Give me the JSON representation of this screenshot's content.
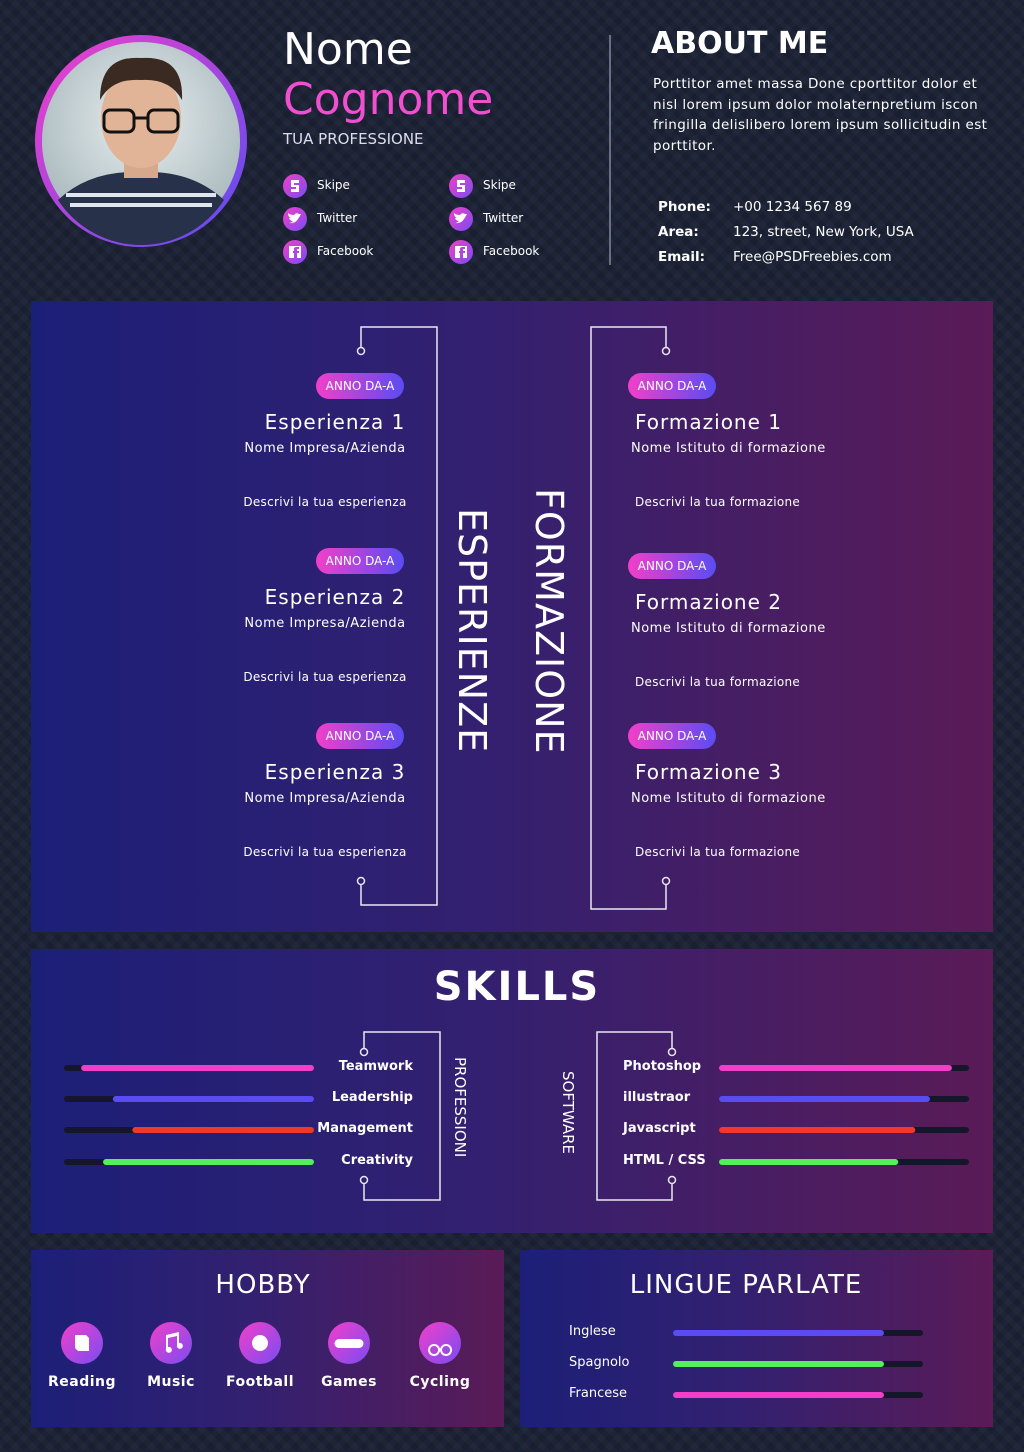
{
  "header": {
    "first_name": "Nome",
    "last_name": "Cognome",
    "profession": "TUA PROFESSIONE",
    "social_left": [
      "Skipe",
      "Twitter",
      "Facebook"
    ],
    "social_right": [
      "Skipe",
      "Twitter",
      "Facebook"
    ]
  },
  "about": {
    "title": "ABOUT ME",
    "text": "Porttitor amet massa Done cporttitor dolor et nisl lorem ipsum dolor molaternpretium iscon fringilla delislibero lorem ipsum sollicitudin est porttitor.",
    "contacts": [
      {
        "label": "Phone:",
        "value": "+00 1234 567 89"
      },
      {
        "label": "Area:",
        "value": "123, street, New York, USA"
      },
      {
        "label": "Email:",
        "value": "Free@PSDFreebies.com"
      }
    ]
  },
  "experience": {
    "title": "ESPERIENZE",
    "items": [
      {
        "years": "ANNO DA-A",
        "title": "Esperienza 1",
        "company": "Nome Impresa/Azienda",
        "description": "Descrivi la tua esperienza"
      },
      {
        "years": "ANNO DA-A",
        "title": "Esperienza 2",
        "company": "Nome Impresa/Azienda",
        "description": "Descrivi la tua esperienza"
      },
      {
        "years": "ANNO DA-A",
        "title": "Esperienza 3",
        "company": "Nome Impresa/Azienda",
        "description": "Descrivi la tua esperienza"
      }
    ]
  },
  "education": {
    "title": "FORMAZIONE",
    "items": [
      {
        "years": "ANNO DA-A",
        "title": "Formazione 1",
        "company": "Nome Istituto di formazione",
        "description": "Descrivi la tua formazione"
      },
      {
        "years": "ANNO DA-A",
        "title": "Formazione 2",
        "company": "Nome Istituto di formazione",
        "description": "Descrivi la tua formazione"
      },
      {
        "years": "ANNO DA-A",
        "title": "Formazione 3",
        "company": "Nome Istituto di formazione",
        "description": "Descrivi la tua formazione"
      }
    ]
  },
  "skills": {
    "title": "SKILLS",
    "professional": {
      "title": "PROFESSIONI",
      "items": [
        {
          "name": "Teamwork",
          "level": 93,
          "color": "#f23fc9"
        },
        {
          "name": "Leadership",
          "level": 80,
          "color": "#5a4cf2"
        },
        {
          "name": "Management",
          "level": 72,
          "color": "#f2382a"
        },
        {
          "name": "Creativity",
          "level": 84,
          "color": "#53f05b"
        }
      ]
    },
    "software": {
      "title": "SOFTWARE",
      "items": [
        {
          "name": "Photoshop",
          "level": 93,
          "color": "#f23fc9"
        },
        {
          "name": "illustraor",
          "level": 84,
          "color": "#5a4cf2"
        },
        {
          "name": "Javascript",
          "level": 78,
          "color": "#f2382a"
        },
        {
          "name": "HTML / CSS",
          "level": 71,
          "color": "#53f05b"
        }
      ]
    }
  },
  "hobby": {
    "title": "HOBBY",
    "items": [
      "Reading",
      "Music",
      "Football",
      "Games",
      "Cycling"
    ]
  },
  "languages": {
    "title": "LINGUE PARLATE",
    "items": [
      {
        "name": "Inglese",
        "level": 84,
        "color": "#5a4cf2"
      },
      {
        "name": "Spagnolo",
        "level": 84,
        "color": "#53f05b"
      },
      {
        "name": "Francese",
        "level": 84,
        "color": "#f23fc9"
      }
    ]
  }
}
